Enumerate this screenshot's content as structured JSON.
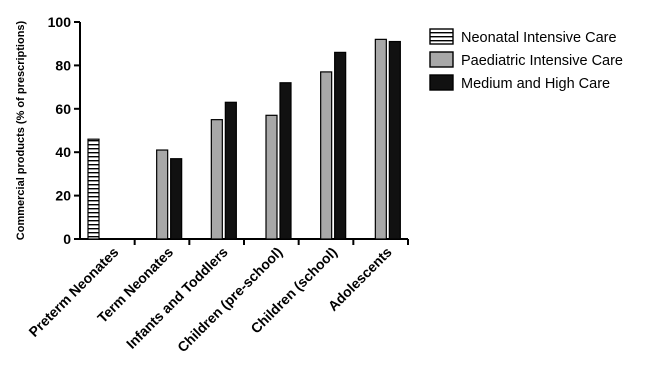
{
  "chart_data": {
    "type": "bar",
    "title": "",
    "xlabel": "",
    "ylabel": "Commercial products (% of prescriptions)",
    "ylim": [
      0,
      100
    ],
    "yticks": [
      0,
      20,
      40,
      60,
      80,
      100
    ],
    "categories": [
      "Preterm Neonates",
      "Term Neonates",
      "Infants and Toddlers",
      "Children (pre-school)",
      "Children (school)",
      "Adolescents"
    ],
    "series": [
      {
        "name": "Neonatal Intensive Care",
        "values": [
          46,
          null,
          null,
          null,
          null,
          null
        ],
        "fill": "#ffffff",
        "pattern": "horizontal-stripes"
      },
      {
        "name": "Paediatric Intensive Care",
        "values": [
          null,
          41,
          55,
          57,
          77,
          92
        ],
        "fill": "#a8a8a8",
        "pattern": "solid"
      },
      {
        "name": "Medium and High Care",
        "values": [
          null,
          37,
          63,
          72,
          86,
          91
        ],
        "fill": "#111111",
        "pattern": "solid"
      }
    ],
    "grid": false,
    "legend_position": "top-right"
  }
}
